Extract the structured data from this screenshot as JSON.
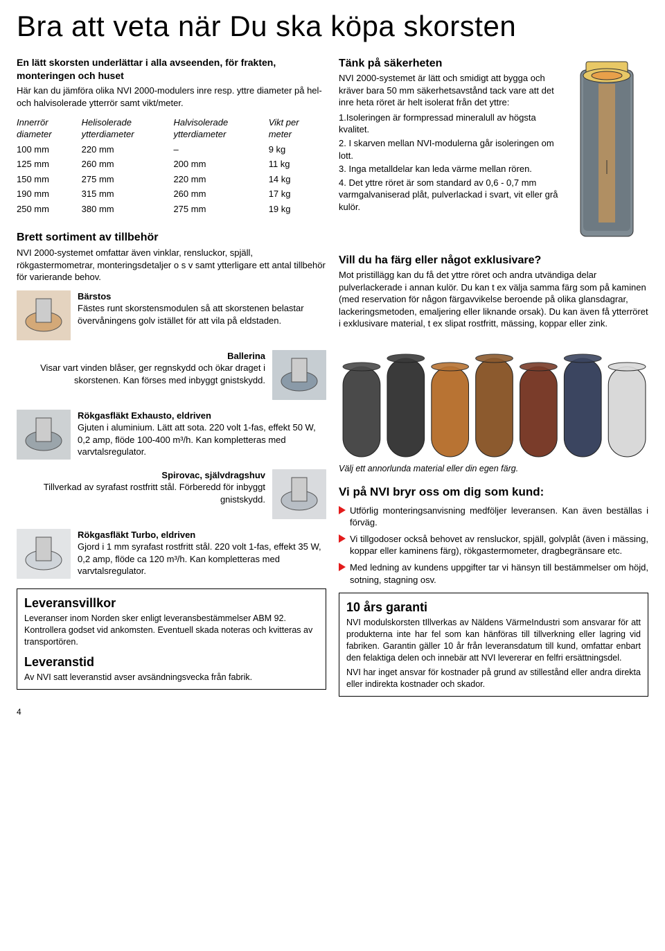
{
  "main_title": "Bra att veta när Du ska köpa skorsten",
  "intro": {
    "bold": "En lätt skorsten underlättar i alla avseenden, för frakten, monteringen och huset",
    "text": "Här kan du jämföra olika NVI 2000-modulers inre resp. yttre diameter på hel- och halvisolerade ytterrör samt vikt/meter."
  },
  "table": {
    "headers": [
      "Innerrör\ndiameter",
      "Helisolerade\nytterdiameter",
      "Halvisolerade\nytterdiameter",
      "Vikt per\nmeter"
    ],
    "rows": [
      [
        "100 mm",
        "220 mm",
        "–",
        "9 kg"
      ],
      [
        "125 mm",
        "260 mm",
        "200 mm",
        "11 kg"
      ],
      [
        "150 mm",
        "275 mm",
        "220 mm",
        "14 kg"
      ],
      [
        "190 mm",
        "315 mm",
        "260 mm",
        "17 kg"
      ],
      [
        "250 mm",
        "380 mm",
        "275 mm",
        "19 kg"
      ]
    ]
  },
  "sortiment": {
    "title": "Brett sortiment av tillbehör",
    "text": "NVI 2000-systemet omfattar även vinklar, rensluckor, spjäll, rökgastermometrar, monteringsdetaljer o s v samt ytterligare ett antal tillbehör för varierande behov."
  },
  "accessories": [
    {
      "title": "Bärstos",
      "desc": "Fästes runt skorstensmodulen så att skorstenen belastar övervåningens golv istället för att vila på eldstaden.",
      "img_color": "#d4a978",
      "align": "left-img"
    },
    {
      "title": "Ballerina",
      "desc": "Visar vart vinden blåser, ger regnskydd och ökar draget i skorstenen. Kan förses med inbyggt gnistskydd.",
      "img_color": "#8a9aa8",
      "align": "right-img"
    },
    {
      "title": "Rökgasfläkt Exhausto, eldriven",
      "desc": "Gjuten i aluminium. Lätt att sota. 220 volt 1-fas, effekt 50 W, 0,2 amp, flöde 100-400 m³/h. Kan kompletteras med varvtalsregulator.",
      "img_color": "#9ba5ab",
      "align": "left-img"
    },
    {
      "title": "Spirovac, självdragshuv",
      "desc": "Tillverkad av syrafast rostfritt stål. Förberedd för inbyggt gnistskydd.",
      "img_color": "#b8bec5",
      "align": "right-img"
    },
    {
      "title": "Rökgasfläkt Turbo, eldriven",
      "desc": "Gjord i 1 mm syrafast rostfritt stål. 220 volt 1-fas, effekt 35 W, 0,2 amp, flöde ca 120 m³/h. Kan kompletteras med varvtalsregulator.",
      "img_color": "#cfd4d9",
      "align": "left-img"
    }
  ],
  "delivery": {
    "title1": "Leveransvillkor",
    "text1": "Leveranser inom Norden sker enligt leveransbestämmelser ABM 92. Kontrollera godset vid ankomsten. Eventuell skada noteras och kvitteras av transportören.",
    "title2": "Leveranstid",
    "text2": "Av NVI satt leveranstid avser avsändningsvecka från fabrik."
  },
  "safety": {
    "title": "Tänk på säkerheten",
    "intro": "NVI 2000-systemet är lätt och smidigt att bygga och kräver bara 50 mm säkerhetsavstånd tack vare att det inre heta röret är helt isolerat från det yttre:",
    "items": [
      "1.Isoleringen är formpressad mineralull av högsta kvalitet.",
      "2. I skarven mellan NVI-modulerna går isoleringen om lott.",
      "3. Inga metalldelar kan leda värme mellan rören.",
      "4. Det yttre röret är som standard av 0,6 - 0,7 mm varmgalvaniserad plåt, pulverlackad i svart, vit eller grå kulör."
    ],
    "colors": {
      "gray": "#7f8b93",
      "yellow": "#e8c866",
      "orange": "#e8a04a"
    }
  },
  "exclusive": {
    "title": "Vill du ha färg eller något exklusivare?",
    "text": "Mot pristillägg kan du få det yttre röret och andra utvändiga delar pulverlackerade i annan kulör. Du kan t ex välja samma färg som på kaminen (med reservation för någon färgavvikelse beroende på olika glansdagrar, lackeringsmetoden, emaljering eller liknande orsak). Du kan även få ytterröret i exklusivare material, t ex slipat rostfritt, mässing, koppar eller zink."
  },
  "color_caption": "Välj ett annorlunda material eller din egen färg.",
  "pipe_colors": [
    "#4a4a4a",
    "#3a3a3a",
    "#b87333",
    "#8c5a2e",
    "#7a3c2a",
    "#3b4560",
    "#d9d9d9"
  ],
  "kund": {
    "title": "Vi på NVI bryr oss om dig som kund:",
    "bullets": [
      "Utförlig monteringsanvisning medföljer leveransen. Kan även beställas i förväg.",
      "Vi tillgodoser också behovet av rensluckor, spjäll, golvplåt (även i mässing, koppar eller kaminens färg), rökgastermometer, dragbegränsare etc.",
      "Med ledning av kundens uppgifter tar vi hänsyn till bestämmelser om höjd, sotning, stagning osv."
    ]
  },
  "warranty": {
    "title": "10 års garanti",
    "p1": "NVI modulskorsten tIllverkas av Näldens VärmeIndustri som ansvarar för att produkterna inte har fel som kan hänföras till tillverkning eller lagring vid fabriken. Garantin gäller 10 år från leveransdatum till kund, omfattar enbart den felaktiga delen och innebär att NVI levererar en felfri ersättningsdel.",
    "p2": "NVI har inget ansvar för kostnader på grund av stillestånd eller andra direkta eller indirekta kostnader och skador."
  },
  "page_number": "4"
}
